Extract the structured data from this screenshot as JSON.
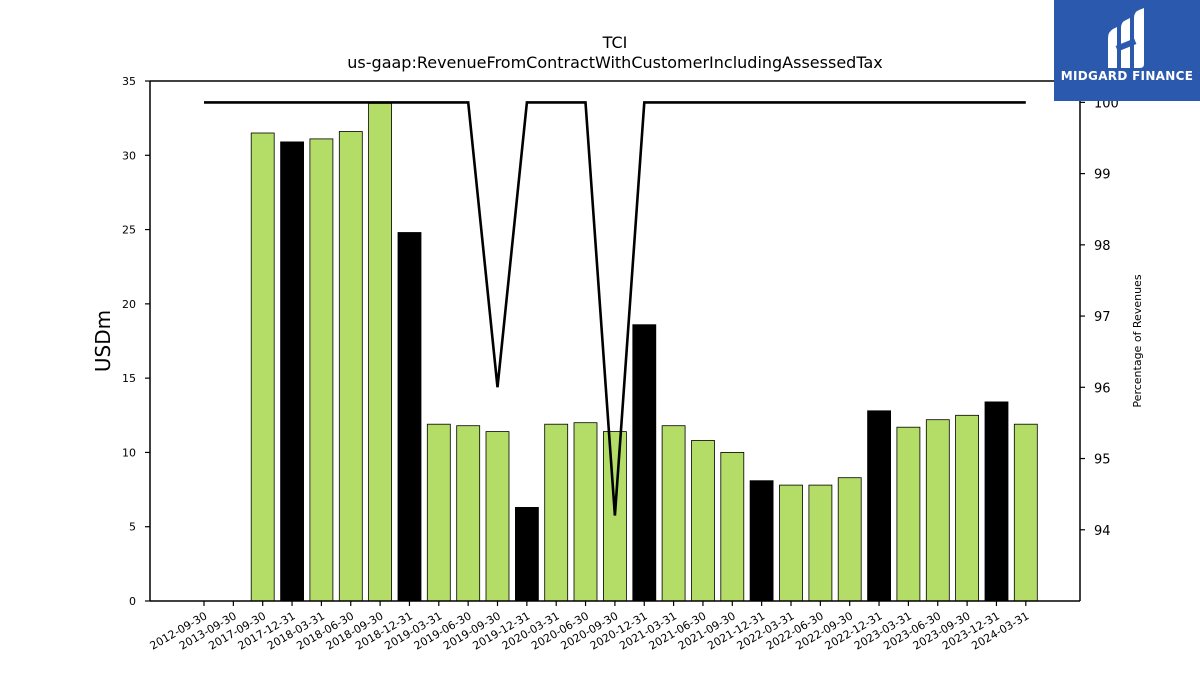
{
  "brand": {
    "name": "MIDGARD FINANCE",
    "bg_color": "#2b59ad",
    "icon": "midgard-m-logo-icon"
  },
  "chart_data": {
    "type": "bar",
    "title": "TCI",
    "subtitle": "us-gaap:RevenueFromContractWithCustomerIncludingAssessedTax",
    "ylabel": "USDm",
    "y2label": "Percentage of Revenues",
    "ylim": [
      0,
      35
    ],
    "y2lim": [
      93,
      100.3
    ],
    "yticks": [
      0,
      5,
      10,
      15,
      20,
      25,
      30,
      35
    ],
    "y2ticks": [
      94,
      95,
      96,
      97,
      98,
      99,
      100
    ],
    "categories": [
      "2012-09-30",
      "2013-09-30",
      "2017-09-30",
      "2017-12-31",
      "2018-03-31",
      "2018-06-30",
      "2018-09-30",
      "2018-12-31",
      "2019-03-31",
      "2019-06-30",
      "2019-09-30",
      "2019-12-31",
      "2020-03-31",
      "2020-06-30",
      "2020-09-30",
      "2020-12-31",
      "2021-03-31",
      "2021-06-30",
      "2021-09-30",
      "2021-12-31",
      "2022-03-31",
      "2022-06-30",
      "2022-09-30",
      "2022-12-31",
      "2023-03-31",
      "2023-06-30",
      "2023-09-30",
      "2023-12-31",
      "2024-03-31"
    ],
    "series": [
      {
        "type": "bar",
        "values": [
          null,
          null,
          31.5,
          30.9,
          31.1,
          31.6,
          33.5,
          24.8,
          11.9,
          11.8,
          11.4,
          6.3,
          11.9,
          12.0,
          11.4,
          18.6,
          11.8,
          10.8,
          10.0,
          8.1,
          7.8,
          7.8,
          8.3,
          12.8,
          11.7,
          12.2,
          12.5,
          13.4,
          11.9
        ],
        "colors": [
          "#b3dd67",
          "#b3dd67",
          "#b3dd67",
          "#000000",
          "#b3dd67",
          "#b3dd67",
          "#b3dd67",
          "#000000",
          "#b3dd67",
          "#b3dd67",
          "#b3dd67",
          "#000000",
          "#b3dd67",
          "#b3dd67",
          "#b3dd67",
          "#000000",
          "#b3dd67",
          "#b3dd67",
          "#b3dd67",
          "#000000",
          "#b3dd67",
          "#b3dd67",
          "#b3dd67",
          "#000000",
          "#b3dd67",
          "#b3dd67",
          "#b3dd67",
          "#000000",
          "#b3dd67"
        ]
      },
      {
        "type": "line",
        "axis": "right",
        "color": "#000000",
        "values": [
          100,
          100,
          100,
          100,
          100,
          100,
          100,
          100,
          100,
          100,
          96.0,
          100,
          100,
          100,
          94.2,
          100,
          100,
          100,
          100,
          100,
          100,
          100,
          100,
          100,
          100,
          100,
          100,
          100,
          100
        ]
      }
    ],
    "grid": false,
    "legend": "none"
  }
}
